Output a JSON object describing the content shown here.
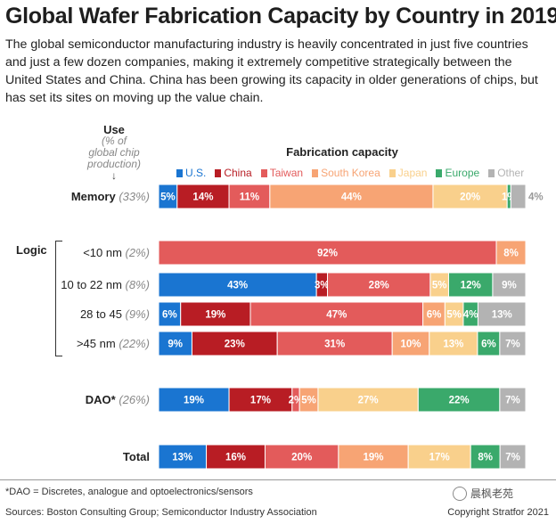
{
  "title": "Global Wafer Fabrication Capacity by Country in 2019",
  "subtitle": "The global semiconductor manufacturing industry is heavily concentrated in just five countries and just a few dozen companies, making it extremely competitive strategically between the United States and China. China has been growing its capacity in older generations of chips, but has set its sites on moving up the value chain.",
  "use_header": {
    "title": "Use",
    "note_lines": [
      "(% of",
      "global chip",
      "production)"
    ],
    "arrow": "↓"
  },
  "fab_title": "Fabrication capacity",
  "group_label": "Logic",
  "footnote": "*DAO = Discretes, analogue and optoelectronics/sensors",
  "sources": "Sources: Boston Consulting Group; Semiconductor Industry Association",
  "copyright": "Copyright Stratfor 2021",
  "watermark": "晨枫老苑",
  "chart_data": {
    "type": "bar",
    "orientation": "horizontal",
    "stacked": true,
    "normalized_percent": true,
    "title": "Global Wafer Fabrication Capacity by Country in 2019",
    "legend_position": "top",
    "series": [
      {
        "name": "U.S.",
        "color": "#1a75d1"
      },
      {
        "name": "China",
        "color": "#b81d24"
      },
      {
        "name": "Taiwan",
        "color": "#e35b5b"
      },
      {
        "name": "South Korea",
        "color": "#f7a474"
      },
      {
        "name": "Japan",
        "color": "#f9d08c"
      },
      {
        "name": "Europe",
        "color": "#3aa96b"
      },
      {
        "name": "Other",
        "color": "#b3b3b3"
      }
    ],
    "rows": [
      {
        "label": "Memory",
        "share": "(33%)",
        "bold": true,
        "values": [
          5,
          14,
          11,
          44,
          20,
          1,
          4
        ],
        "labels": [
          "5%",
          "14%",
          "11%",
          "44%",
          "20%",
          "1%",
          "4%"
        ]
      },
      {
        "label": "<10 nm",
        "share": "(2%)",
        "bold": false,
        "values": [
          0,
          0,
          92,
          8,
          0,
          0,
          0
        ],
        "labels": [
          "",
          "",
          "92%",
          "8%",
          "",
          "",
          ""
        ]
      },
      {
        "label": "10 to 22 nm",
        "share": "(8%)",
        "bold": false,
        "values": [
          43,
          3,
          28,
          0,
          5,
          12,
          9
        ],
        "labels": [
          "43%",
          "3%",
          "28%",
          "",
          "5%",
          "12%",
          "9%"
        ]
      },
      {
        "label": "28 to 45",
        "share": "(9%)",
        "bold": false,
        "values": [
          6,
          19,
          47,
          6,
          5,
          4,
          13
        ],
        "labels": [
          "6%",
          "19%",
          "47%",
          "6%",
          "5%",
          "4%",
          "13%"
        ]
      },
      {
        "label": ">45 nm",
        "share": "(22%)",
        "bold": false,
        "values": [
          9,
          23,
          31,
          10,
          13,
          6,
          7
        ],
        "labels": [
          "9%",
          "23%",
          "31%",
          "10%",
          "13%",
          "6%",
          "7%"
        ]
      },
      {
        "label": "DAO*",
        "share": "(26%)",
        "bold": true,
        "values": [
          19,
          17,
          2,
          5,
          27,
          22,
          7
        ],
        "labels": [
          "19%",
          "17%",
          "2%",
          "5%",
          "27%",
          "22%",
          "7%"
        ]
      },
      {
        "label": "Total",
        "share": "",
        "bold": true,
        "values": [
          13,
          16,
          20,
          19,
          17,
          8,
          7
        ],
        "labels": [
          "13%",
          "16%",
          "20%",
          "19%",
          "17%",
          "8%",
          "7%"
        ]
      }
    ]
  }
}
